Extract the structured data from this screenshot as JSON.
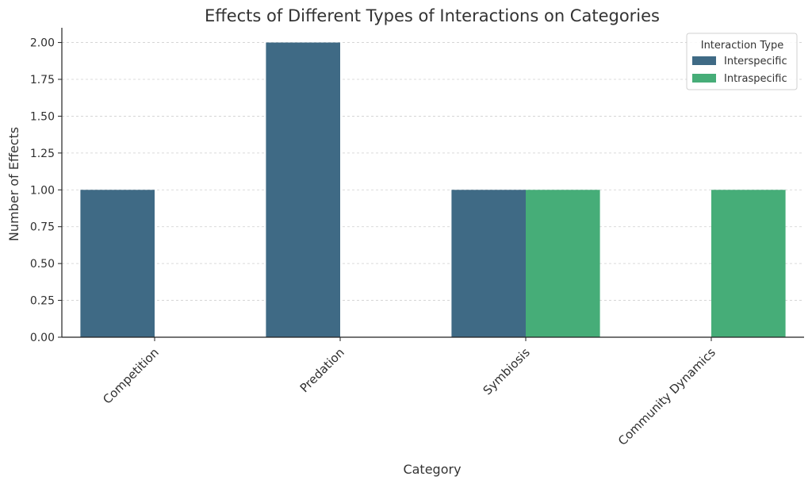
{
  "chart_data": {
    "type": "bar",
    "title": "Effects of Different Types of Interactions on Categories",
    "xlabel": "Category",
    "ylabel": "Number of Effects",
    "categories": [
      "Competition",
      "Predation",
      "Symbiosis",
      "Community Dynamics"
    ],
    "series": [
      {
        "name": "Interspecific",
        "color": "#3f6a85",
        "values": [
          1,
          2,
          1,
          0
        ]
      },
      {
        "name": "Intraspecific",
        "color": "#46ad78",
        "values": [
          0,
          0,
          1,
          1
        ]
      }
    ],
    "ylim": [
      0,
      2.1
    ],
    "yticks": [
      "0.00",
      "0.25",
      "0.50",
      "0.75",
      "1.00",
      "1.25",
      "1.50",
      "1.75",
      "2.00"
    ],
    "grid": true,
    "legend": {
      "title": "Interaction Type",
      "placement": "top-right"
    }
  }
}
